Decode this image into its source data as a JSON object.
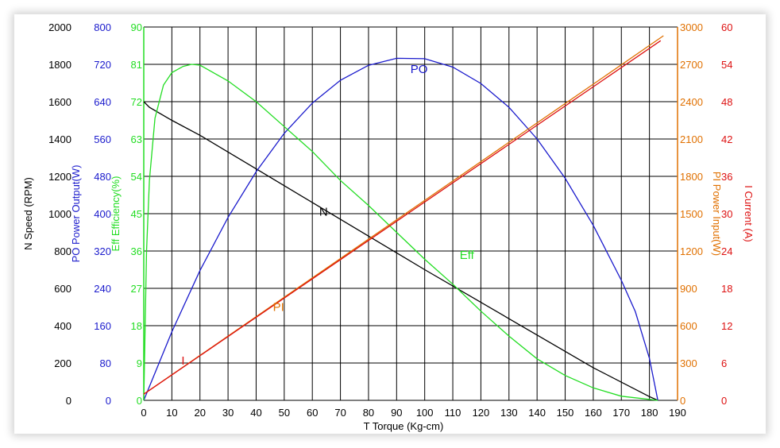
{
  "chart_data": {
    "type": "line",
    "xlabel": "T    Torque (Kg-cm)",
    "x_ticks": [
      0,
      10,
      20,
      30,
      40,
      50,
      60,
      70,
      80,
      90,
      100,
      110,
      120,
      130,
      140,
      150,
      160,
      170,
      180,
      190
    ],
    "xlim": [
      0,
      190
    ],
    "grid": true,
    "axes": [
      {
        "key": "N",
        "side": "left",
        "label": "N   Speed (RPM)",
        "color": "#000000",
        "ticks": [
          0,
          200,
          400,
          600,
          800,
          1000,
          1200,
          1400,
          1600,
          1800,
          2000
        ],
        "ylim": [
          0,
          2000
        ]
      },
      {
        "key": "PO",
        "side": "left",
        "label": "PO  Power Output(W)",
        "color": "#1a1acc",
        "ticks": [
          0,
          80,
          160,
          240,
          320,
          400,
          480,
          560,
          640,
          720,
          800
        ],
        "ylim": [
          0,
          800
        ]
      },
      {
        "key": "Eff",
        "side": "left",
        "label": "Eff  Efficiency(%)",
        "color": "#22dd22",
        "ticks": [
          0,
          9,
          18,
          27,
          36,
          45,
          54,
          63,
          72,
          81,
          90
        ],
        "ylim": [
          0,
          90
        ]
      },
      {
        "key": "PI",
        "side": "right",
        "label": "PI  Power Input(W)",
        "color": "#e07000",
        "ticks": [
          0,
          300,
          600,
          900,
          1200,
          1500,
          1800,
          2100,
          2400,
          2700,
          3000
        ],
        "ylim": [
          0,
          3000
        ]
      },
      {
        "key": "I",
        "side": "right",
        "label": "I   Current (A)",
        "color": "#dd1111",
        "ticks": [
          0,
          6,
          12,
          18,
          24,
          30,
          36,
          42,
          48,
          54,
          60
        ],
        "ylim": [
          0,
          60
        ]
      }
    ],
    "series": [
      {
        "name": "N",
        "axis": "N",
        "color": "#000000",
        "label_at": [
          64,
          1010
        ],
        "points": [
          [
            0,
            1600
          ],
          [
            2,
            1570
          ],
          [
            10,
            1500
          ],
          [
            20,
            1420
          ],
          [
            40,
            1240
          ],
          [
            60,
            1060
          ],
          [
            80,
            880
          ],
          [
            100,
            700
          ],
          [
            120,
            525
          ],
          [
            140,
            350
          ],
          [
            160,
            175
          ],
          [
            180,
            20
          ],
          [
            183,
            0
          ]
        ]
      },
      {
        "name": "PO",
        "axis": "PO",
        "color": "#1a1acc",
        "label_at": [
          98,
          710
        ],
        "points": [
          [
            0,
            0
          ],
          [
            10,
            147
          ],
          [
            20,
            278
          ],
          [
            30,
            392
          ],
          [
            40,
            490
          ],
          [
            50,
            572
          ],
          [
            60,
            637
          ],
          [
            70,
            686
          ],
          [
            80,
            718
          ],
          [
            90,
            733
          ],
          [
            100,
            732
          ],
          [
            110,
            714
          ],
          [
            120,
            679
          ],
          [
            130,
            628
          ],
          [
            140,
            560
          ],
          [
            150,
            476
          ],
          [
            160,
            375
          ],
          [
            170,
            257
          ],
          [
            175,
            190
          ],
          [
            180,
            90
          ],
          [
            183,
            0
          ]
        ]
      },
      {
        "name": "Eff",
        "axis": "Eff",
        "color": "#22dd22",
        "label_at": [
          115,
          35
        ],
        "points": [
          [
            0,
            0
          ],
          [
            1,
            36
          ],
          [
            2,
            53
          ],
          [
            4,
            68
          ],
          [
            7,
            76
          ],
          [
            10,
            79
          ],
          [
            14,
            80.5
          ],
          [
            17,
            81
          ],
          [
            20,
            80.8
          ],
          [
            30,
            77
          ],
          [
            40,
            72
          ],
          [
            50,
            66
          ],
          [
            60,
            60
          ],
          [
            70,
            53
          ],
          [
            80,
            47
          ],
          [
            90,
            40.5
          ],
          [
            100,
            34
          ],
          [
            110,
            28
          ],
          [
            120,
            21.5
          ],
          [
            130,
            15.5
          ],
          [
            140,
            10
          ],
          [
            150,
            6
          ],
          [
            160,
            3
          ],
          [
            170,
            1
          ],
          [
            183,
            0
          ]
        ]
      },
      {
        "name": "PI",
        "axis": "PI",
        "color": "#e07000",
        "label_at": [
          48,
          750
        ],
        "points": [
          [
            0,
            50
          ],
          [
            185,
            2930
          ]
        ]
      },
      {
        "name": "I",
        "axis": "I",
        "color": "#dd1111",
        "label_at": [
          14,
          6.4
        ],
        "points": [
          [
            0,
            1
          ],
          [
            184,
            57.8
          ]
        ]
      }
    ]
  }
}
